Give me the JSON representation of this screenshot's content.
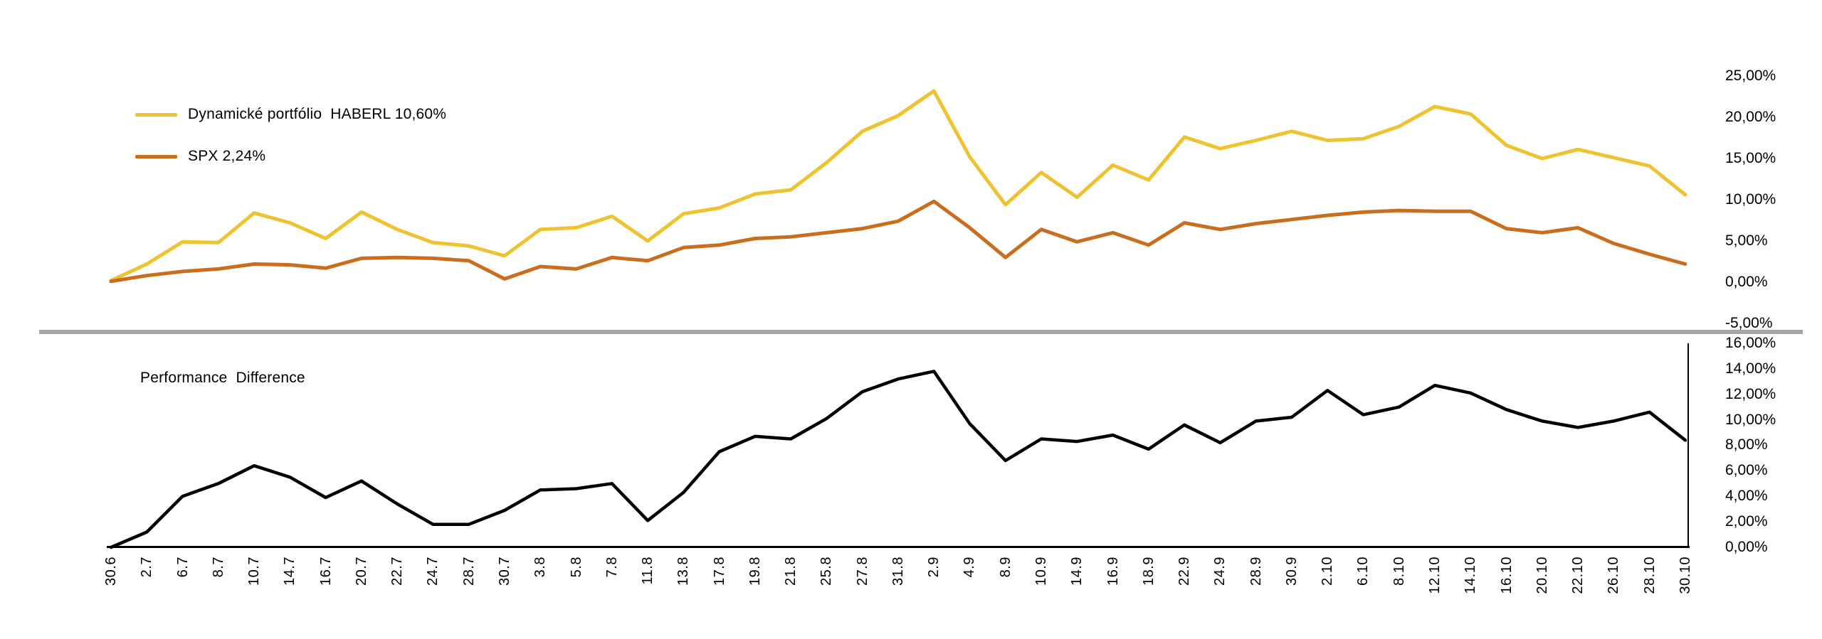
{
  "page": {
    "background": "#ffffff",
    "divider_color": "#A6A6A6"
  },
  "chart_data": [
    {
      "type": "line",
      "panel": "top",
      "title": "",
      "xlabel": "",
      "ylabel": "",
      "categories": [
        "30.6",
        "2.7",
        "6.7",
        "8.7",
        "10.7",
        "14.7",
        "16.7",
        "20.7",
        "22.7",
        "24.7",
        "28.7",
        "30.7",
        "3.8",
        "5.8",
        "7.8",
        "11.8",
        "13.8",
        "17.8",
        "19.8",
        "21.8",
        "25.8",
        "27.8",
        "31.8",
        "2.9",
        "4.9",
        "8.9",
        "10.9",
        "14.9",
        "16.9",
        "18.9",
        "22.9",
        "24.9",
        "28.9",
        "30.9",
        "2.10",
        "6.10",
        "8.10",
        "12.10",
        "14.10",
        "16.10",
        "20.10",
        "22.10",
        "26.10",
        "28.10",
        "30.10"
      ],
      "series": [
        {
          "name": "Dynamické portfólio  HABERL 10,60%",
          "color": "#EFC32F",
          "final_value_pct": 10.6,
          "values": [
            0.2,
            2.2,
            4.9,
            4.8,
            8.4,
            7.2,
            5.3,
            8.5,
            6.4,
            4.8,
            4.4,
            3.2,
            6.4,
            6.6,
            8.0,
            5.0,
            8.3,
            9.0,
            10.7,
            11.2,
            14.5,
            18.3,
            20.2,
            23.2,
            15.2,
            9.4,
            13.3,
            10.3,
            14.2,
            12.4,
            17.6,
            16.2,
            17.2,
            18.3,
            17.2,
            17.4,
            18.9,
            21.3,
            20.4,
            16.6,
            15.0,
            16.1,
            15.1,
            14.1,
            10.6
          ]
        },
        {
          "name": "SPX 2,24%",
          "color": "#C86E1E",
          "final_value_pct": 2.24,
          "values": [
            0.1,
            0.8,
            1.3,
            1.6,
            2.2,
            2.1,
            1.7,
            2.9,
            3.0,
            2.9,
            2.6,
            0.4,
            1.9,
            1.6,
            3.0,
            2.6,
            4.2,
            4.5,
            5.3,
            5.5,
            6.0,
            6.5,
            7.4,
            9.8,
            6.6,
            3.0,
            6.4,
            4.9,
            6.0,
            4.5,
            7.2,
            6.4,
            7.1,
            7.6,
            8.1,
            8.5,
            8.7,
            8.6,
            8.6,
            6.5,
            6.0,
            6.6,
            4.7,
            3.4,
            2.2
          ]
        }
      ],
      "ylim": [
        -5,
        25
      ],
      "ytick_values": [
        25,
        20,
        15,
        10,
        5,
        0,
        -5
      ],
      "ytick_labels": [
        "25,00%",
        "20,00%",
        "15,00%",
        "10,00%",
        "5,00%",
        "0,00%",
        "-5,00%"
      ],
      "yaxis_side": "right",
      "grid": false,
      "legend_position": "top-left"
    },
    {
      "type": "line",
      "panel": "bottom",
      "title": "Performance  Difference",
      "xlabel": "",
      "ylabel": "",
      "categories": [
        "30.6",
        "2.7",
        "6.7",
        "8.7",
        "10.7",
        "14.7",
        "16.7",
        "20.7",
        "22.7",
        "24.7",
        "28.7",
        "30.7",
        "3.8",
        "5.8",
        "7.8",
        "11.8",
        "13.8",
        "17.8",
        "19.8",
        "21.8",
        "25.8",
        "27.8",
        "31.8",
        "2.9",
        "4.9",
        "8.9",
        "10.9",
        "14.9",
        "16.9",
        "18.9",
        "22.9",
        "24.9",
        "28.9",
        "30.9",
        "2.10",
        "6.10",
        "8.10",
        "12.10",
        "14.10",
        "16.10",
        "20.10",
        "22.10",
        "26.10",
        "28.10",
        "30.10"
      ],
      "series": [
        {
          "name": "Performance Difference",
          "color": "#000000",
          "values": [
            0.0,
            1.2,
            4.0,
            5.0,
            6.4,
            5.5,
            3.9,
            5.2,
            3.4,
            1.8,
            1.8,
            2.9,
            4.5,
            4.6,
            5.0,
            2.1,
            4.3,
            7.5,
            8.7,
            8.5,
            10.1,
            12.2,
            13.2,
            13.8,
            9.7,
            6.8,
            8.5,
            8.3,
            8.8,
            7.7,
            9.6,
            8.2,
            9.9,
            10.2,
            12.3,
            10.4,
            11.0,
            12.7,
            12.1,
            10.8,
            9.9,
            9.4,
            9.9,
            10.6,
            8.4
          ]
        }
      ],
      "ylim": [
        0,
        16
      ],
      "ytick_values": [
        16,
        14,
        12,
        10,
        8,
        6,
        4,
        2,
        0
      ],
      "ytick_labels": [
        "16,00%",
        "14,00%",
        "12,00%",
        "10,00%",
        "8,00%",
        "6,00%",
        "4,00%",
        "2,00%",
        "0,00%"
      ],
      "yaxis_side": "right",
      "grid": false,
      "legend_position": "none"
    }
  ]
}
